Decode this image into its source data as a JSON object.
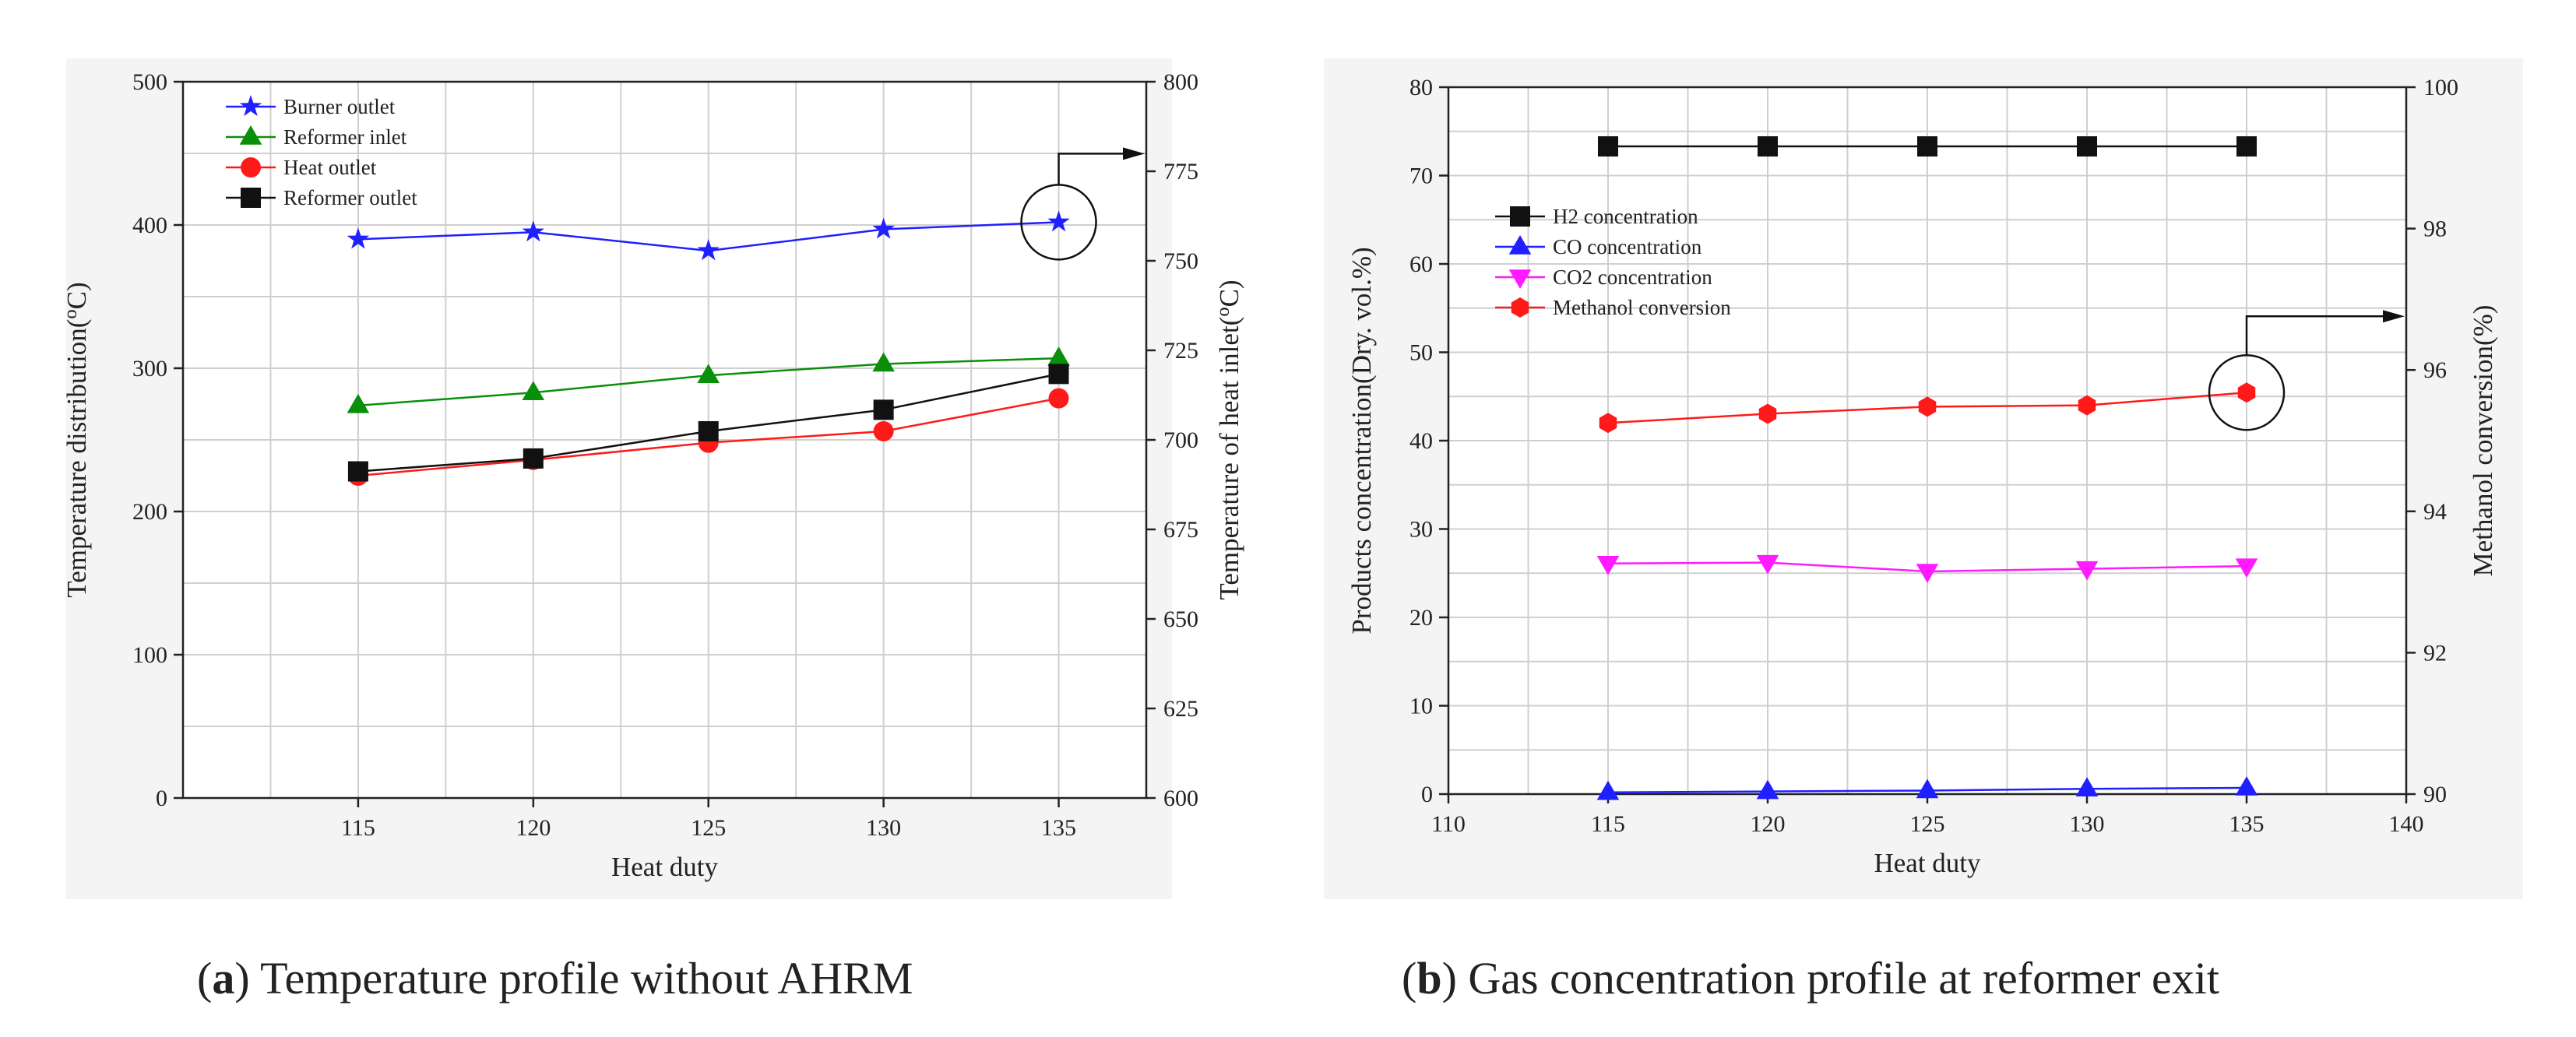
{
  "chart_data": [
    {
      "id": "a",
      "type": "line",
      "xlabel": "Heat duty",
      "ylabel": "Temperature distribution(°C)",
      "ylabel_parts": {
        "before": "Temperature distribution(",
        "sup": "o",
        "after": "C)"
      },
      "y2label": "Temperature of heat inlet(°C)",
      "y2label_parts": {
        "before": "Temperature of heat inlet(",
        "sup": "o",
        "after": "C)"
      },
      "xlim": [
        110,
        137.5
      ],
      "ylim": [
        0,
        500
      ],
      "y2lim": [
        600,
        800
      ],
      "xticks": [
        115,
        120,
        125,
        130,
        135
      ],
      "yticks": [
        0,
        100,
        200,
        300,
        400,
        500
      ],
      "y2ticks": [
        600,
        625,
        650,
        675,
        700,
        725,
        750,
        775,
        800
      ],
      "x": [
        115,
        120,
        125,
        130,
        135
      ],
      "series": [
        {
          "name": "Burner outlet",
          "values": [
            390,
            395,
            382,
            397,
            402
          ],
          "color": "#1f1fff",
          "marker": "star",
          "axis": "left"
        },
        {
          "name": "Reformer inlet",
          "values": [
            274,
            283,
            295,
            303,
            307
          ],
          "color": "#0a8f0a",
          "marker": "triangle-up",
          "axis": "left"
        },
        {
          "name": "Heat outlet",
          "values": [
            225,
            236,
            248,
            256,
            279
          ],
          "color": "#ff1a1a",
          "marker": "circle",
          "axis": "left"
        },
        {
          "name": "Reformer outlet",
          "values": [
            228,
            237,
            256,
            271,
            296
          ],
          "color": "#111111",
          "marker": "square",
          "axis": "left"
        }
      ],
      "legend": "top-left",
      "annotation": "circle around Burner outlet at 135 with arrow pointing to right axis",
      "caption": {
        "label": "a",
        "text": ") Temperature profile without AHRM"
      }
    },
    {
      "id": "b",
      "type": "line",
      "xlabel": "Heat duty",
      "ylabel": "Products concentration(Dry. vol.%)",
      "y2label": "Methanol conversion(%)",
      "xlim": [
        110,
        140
      ],
      "ylim": [
        0,
        80
      ],
      "y2lim": [
        90,
        100
      ],
      "xticks": [
        110,
        115,
        120,
        125,
        130,
        135,
        140
      ],
      "yticks": [
        0,
        10,
        20,
        30,
        40,
        50,
        60,
        70,
        80
      ],
      "y2ticks": [
        90,
        92,
        94,
        96,
        98,
        100
      ],
      "x": [
        115,
        120,
        125,
        130,
        135
      ],
      "series": [
        {
          "name": "H2 concentration",
          "values": [
            73.3,
            73.3,
            73.3,
            73.3,
            73.3
          ],
          "color": "#111111",
          "marker": "square",
          "axis": "left"
        },
        {
          "name": "CO concentration",
          "values": [
            0.2,
            0.3,
            0.4,
            0.6,
            0.7
          ],
          "color": "#1f1fff",
          "marker": "triangle-up",
          "axis": "left"
        },
        {
          "name": "CO2 concentration",
          "values": [
            26.1,
            26.2,
            25.2,
            25.5,
            25.8
          ],
          "color": "#ff1aff",
          "marker": "triangle-down",
          "axis": "left"
        },
        {
          "name": "Methanol conversion",
          "values": [
            95.25,
            95.38,
            95.48,
            95.5,
            95.68
          ],
          "color": "#ff1a1a",
          "marker": "hexagon",
          "axis": "right"
        }
      ],
      "legend": "upper-left",
      "annotation": "circle around Methanol conversion at 135 with arrow pointing to right axis",
      "caption": {
        "label": "b",
        "text": ") Gas concentration profile at reformer exit"
      }
    }
  ]
}
